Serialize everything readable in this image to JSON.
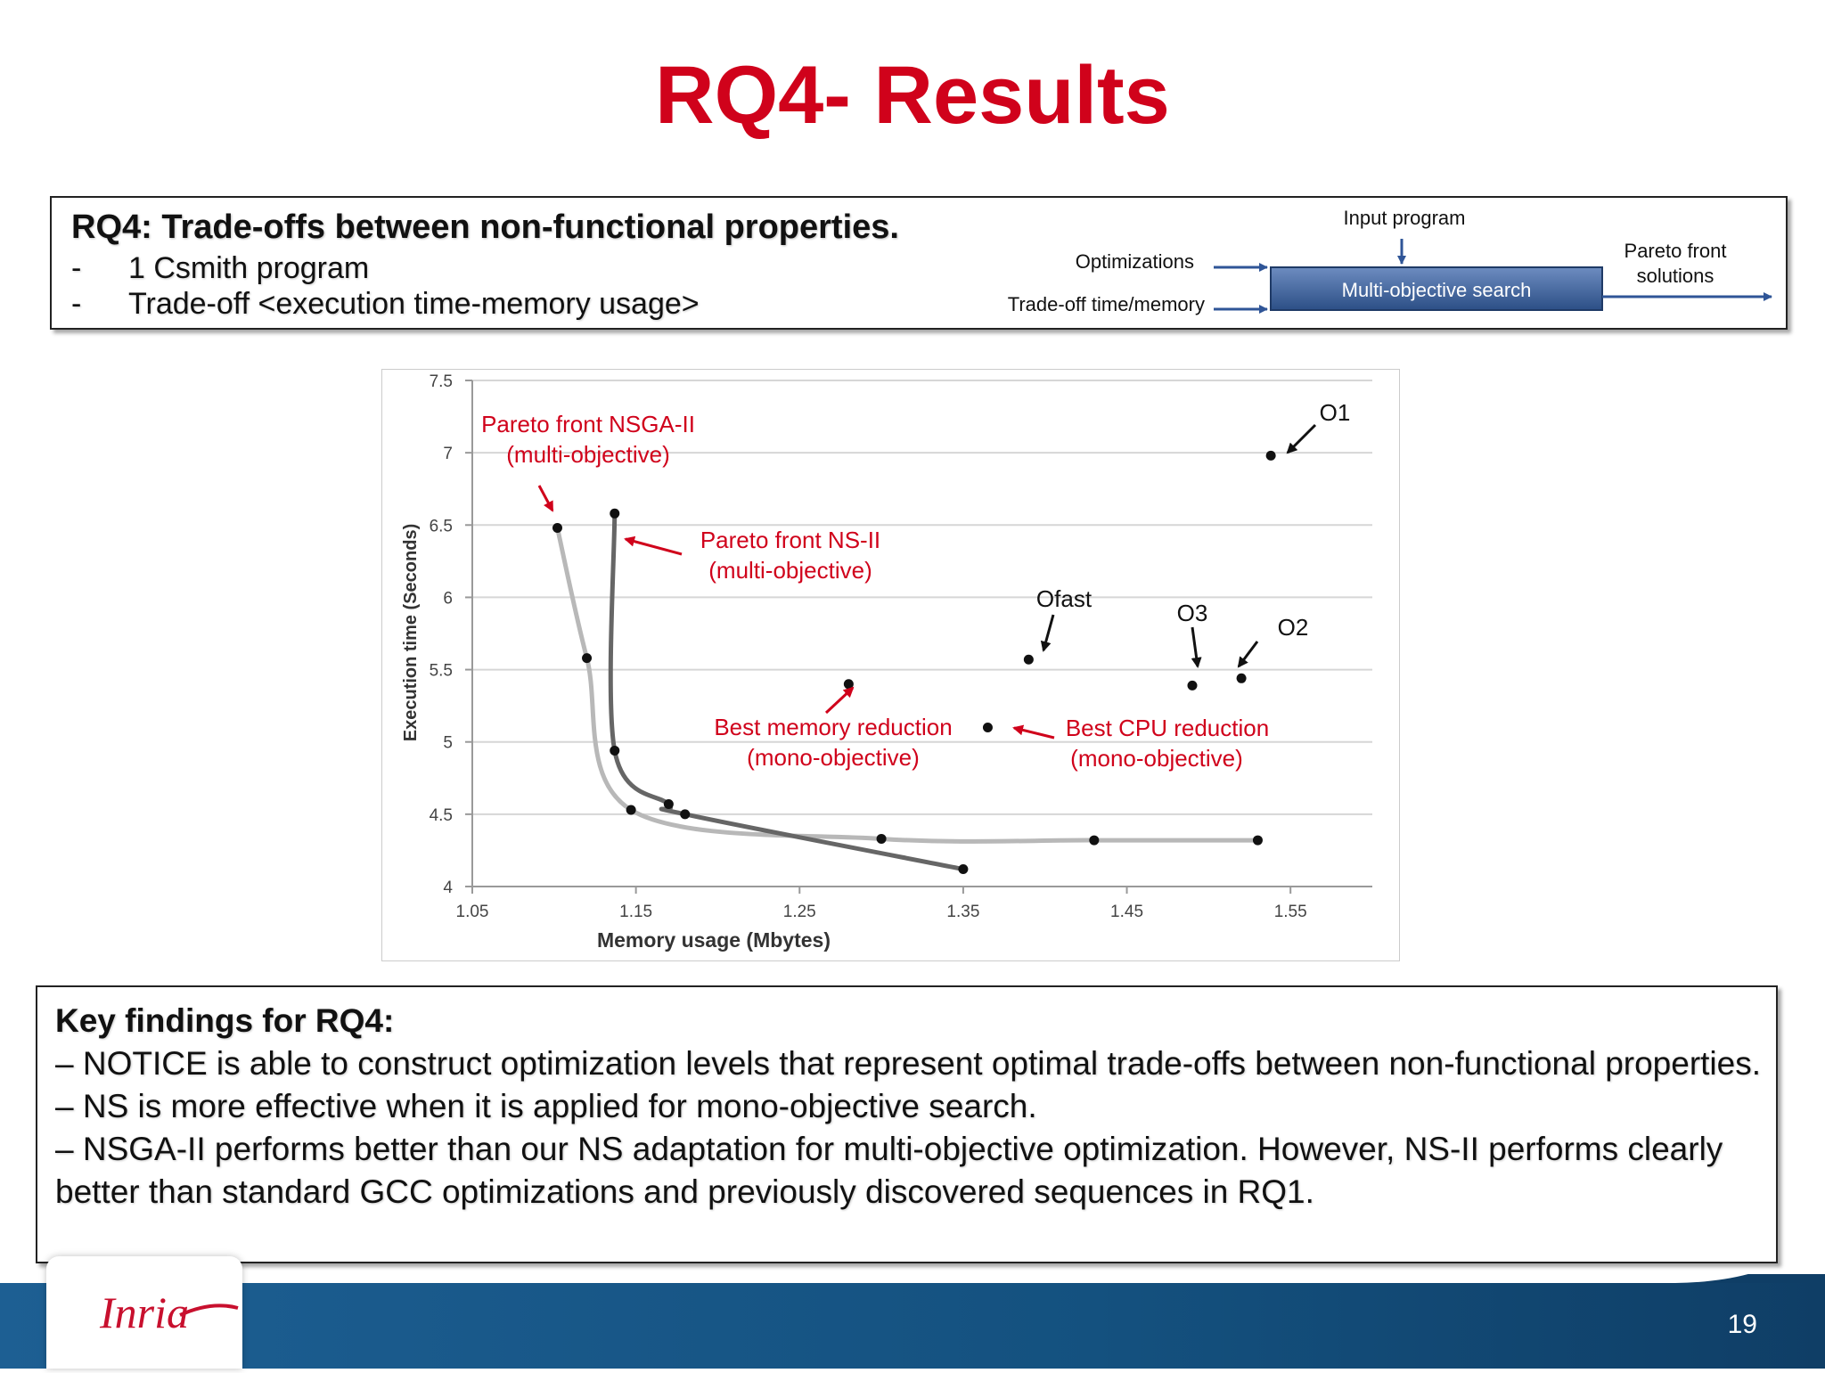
{
  "slide": {
    "title": "RQ4- Results",
    "page_number": "19",
    "logo_text": "Inria"
  },
  "rq_box": {
    "heading": "RQ4: Trade-offs between non-functional properties.",
    "items": [
      {
        "dash": "-",
        "text": "1 Csmith program"
      },
      {
        "dash": "-",
        "text": "Trade-off <execution time-memory usage>"
      }
    ]
  },
  "diagram": {
    "input_label": "Input program",
    "optimizations_label": "Optimizations",
    "tradeoff_label": "Trade-off time/memory",
    "search_label": "Multi-objective search",
    "output_label_line1": "Pareto front",
    "output_label_line2": "solutions",
    "box_color": "#3c5f95"
  },
  "chart_data": {
    "type": "scatter",
    "xlabel": "Memory usage (Mbytes)",
    "ylabel": "Execution time (Seconds)",
    "xlim": [
      1.05,
      1.6
    ],
    "ylim": [
      4,
      7.5
    ],
    "x_ticks": [
      "1.05",
      "1.15",
      "1.25",
      "1.35",
      "1.45",
      "1.55"
    ],
    "y_ticks": [
      "4",
      "4.5",
      "5",
      "5.5",
      "6",
      "6.5",
      "7",
      "7.5"
    ],
    "grid": true,
    "series": [
      {
        "name": "Pareto front NSGA-II",
        "color": "#b8b8b8",
        "points": [
          [
            1.102,
            6.48
          ],
          [
            1.12,
            5.58
          ],
          [
            1.147,
            4.53
          ],
          [
            1.3,
            4.33
          ],
          [
            1.43,
            4.32
          ],
          [
            1.53,
            4.32
          ]
        ]
      },
      {
        "name": "Pareto front NS-II",
        "color": "#666666",
        "points": [
          [
            1.137,
            6.58
          ],
          [
            1.137,
            4.94
          ],
          [
            1.17,
            4.57
          ],
          [
            1.18,
            4.5
          ],
          [
            1.35,
            4.12
          ]
        ]
      },
      {
        "name": "Best memory reduction",
        "color": "#111111",
        "points": [
          [
            1.28,
            5.4
          ]
        ]
      },
      {
        "name": "Best CPU reduction",
        "color": "#111111",
        "points": [
          [
            1.365,
            5.1
          ]
        ]
      },
      {
        "name": "Ofast",
        "color": "#111111",
        "points": [
          [
            1.39,
            5.57
          ]
        ]
      },
      {
        "name": "O3",
        "color": "#111111",
        "points": [
          [
            1.49,
            5.39
          ]
        ]
      },
      {
        "name": "O2",
        "color": "#111111",
        "points": [
          [
            1.52,
            5.44
          ]
        ]
      },
      {
        "name": "O1",
        "color": "#111111",
        "points": [
          [
            1.538,
            6.98
          ]
        ]
      }
    ],
    "annotations": {
      "nsga_line1": "Pareto front NSGA-II",
      "nsga_line2": "(multi-objective)",
      "ns_line1": "Pareto front NS-II",
      "ns_line2": "(multi-objective)",
      "mem_line1": "Best memory reduction",
      "mem_line2": "(mono-objective)",
      "cpu_line1": "Best CPU reduction",
      "cpu_line2": "(mono-objective)",
      "ofast": "Ofast",
      "o3": "O3",
      "o2": "O2",
      "o1": "O1"
    },
    "annotation_color_red": "#d0021b"
  },
  "findings": {
    "heading": "Key findings for RQ4:",
    "lines": [
      " – NOTICE is able to construct optimization levels that represent optimal trade-offs between non-functional properties.",
      "– NS is more effective when it is applied for mono-objective search.",
      "– NSGA-II performs better than our NS adaptation for multi-objective optimization. However, NS-II performs clearly better than standard GCC optimizations and previously discovered sequences in RQ1."
    ]
  }
}
